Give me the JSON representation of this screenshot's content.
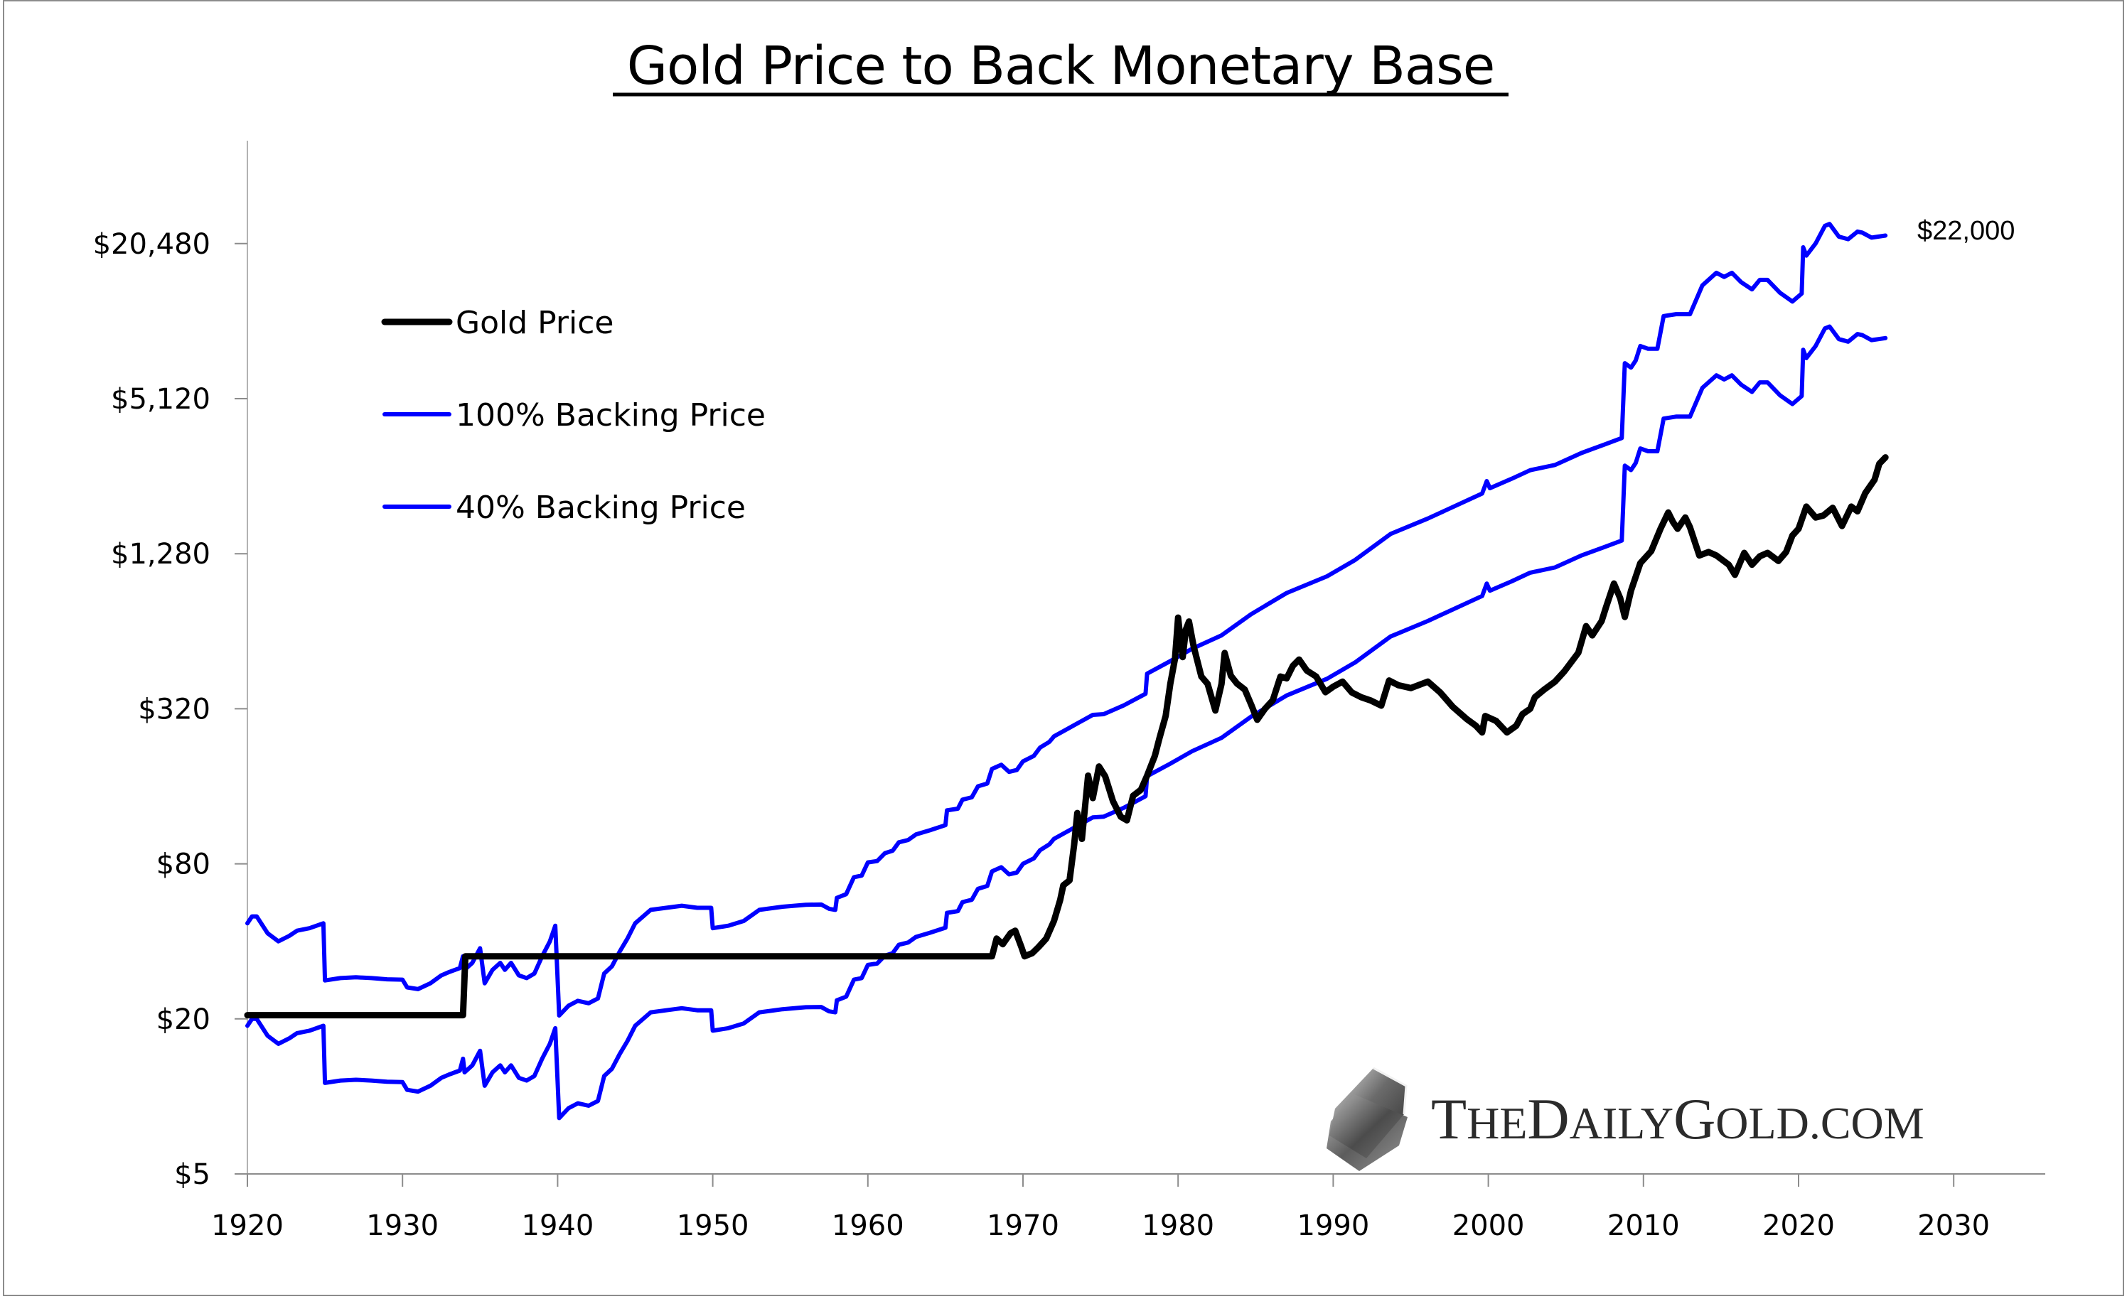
{
  "chart_data": {
    "type": "line",
    "title": "Gold Price to Back Monetary Base",
    "xlabel": "",
    "ylabel": "",
    "y_scale": "log",
    "ylim": [
      5,
      40000
    ],
    "xlim": [
      1920,
      2035
    ],
    "grid": false,
    "legend_position": "top-left",
    "y_ticks": [
      {
        "value": 5,
        "label": "$5"
      },
      {
        "value": 20,
        "label": "$20"
      },
      {
        "value": 80,
        "label": "$80"
      },
      {
        "value": 320,
        "label": "$320"
      },
      {
        "value": 1280,
        "label": "$1,280"
      },
      {
        "value": 5120,
        "label": "$5,120"
      },
      {
        "value": 20480,
        "label": "$20,480"
      }
    ],
    "x_ticks": [
      {
        "value": 1920,
        "label": "1920"
      },
      {
        "value": 1930,
        "label": "1930"
      },
      {
        "value": 1940,
        "label": "1940"
      },
      {
        "value": 1950,
        "label": "1950"
      },
      {
        "value": 1960,
        "label": "1960"
      },
      {
        "value": 1970,
        "label": "1970"
      },
      {
        "value": 1980,
        "label": "1980"
      },
      {
        "value": 1990,
        "label": "1990"
      },
      {
        "value": 2000,
        "label": "2000"
      },
      {
        "value": 2010,
        "label": "2010"
      },
      {
        "value": 2020,
        "label": "2020"
      },
      {
        "value": 2030,
        "label": "2030"
      }
    ],
    "series": [
      {
        "name": "Gold Price",
        "color": "#000000",
        "points": [
          [
            1920.0,
            20.67
          ],
          [
            1933.9,
            20.67
          ],
          [
            1934.05,
            35.0
          ],
          [
            1968.0,
            35.0
          ],
          [
            1968.3,
            41
          ],
          [
            1968.7,
            39
          ],
          [
            1969.2,
            43
          ],
          [
            1969.5,
            44
          ],
          [
            1969.9,
            38
          ],
          [
            1970.1,
            35
          ],
          [
            1970.6,
            36
          ],
          [
            1971.0,
            38
          ],
          [
            1971.5,
            41
          ],
          [
            1972.0,
            48
          ],
          [
            1972.4,
            58
          ],
          [
            1972.6,
            66
          ],
          [
            1973.0,
            69
          ],
          [
            1973.3,
            95
          ],
          [
            1973.5,
            126
          ],
          [
            1973.8,
            100
          ],
          [
            1974.2,
            176
          ],
          [
            1974.5,
            144
          ],
          [
            1974.9,
            191
          ],
          [
            1975.3,
            175
          ],
          [
            1975.8,
            140
          ],
          [
            1976.3,
            122
          ],
          [
            1976.7,
            118
          ],
          [
            1977.1,
            147
          ],
          [
            1977.6,
            155
          ],
          [
            1978.0,
            176
          ],
          [
            1978.5,
            210
          ],
          [
            1978.8,
            246
          ],
          [
            1979.2,
            300
          ],
          [
            1979.5,
            401
          ],
          [
            1979.8,
            500
          ],
          [
            1980.0,
            723
          ],
          [
            1980.2,
            560
          ],
          [
            1980.3,
            508
          ],
          [
            1980.5,
            650
          ],
          [
            1980.7,
            698
          ],
          [
            1981.0,
            560
          ],
          [
            1981.5,
            427
          ],
          [
            1981.9,
            400
          ],
          [
            1982.4,
            315
          ],
          [
            1982.8,
            400
          ],
          [
            1983.0,
            527
          ],
          [
            1983.4,
            430
          ],
          [
            1983.8,
            401
          ],
          [
            1984.3,
            380
          ],
          [
            1984.7,
            333
          ],
          [
            1985.1,
            290
          ],
          [
            1985.6,
            320
          ],
          [
            1986.1,
            345
          ],
          [
            1986.6,
            427
          ],
          [
            1987.0,
            420
          ],
          [
            1987.4,
            470
          ],
          [
            1987.8,
            497
          ],
          [
            1988.3,
            450
          ],
          [
            1988.9,
            427
          ],
          [
            1989.5,
            371
          ],
          [
            1990.0,
            390
          ],
          [
            1990.6,
            408
          ],
          [
            1991.2,
            370
          ],
          [
            1991.8,
            355
          ],
          [
            1992.4,
            345
          ],
          [
            1993.1,
            329
          ],
          [
            1993.6,
            412
          ],
          [
            1994.2,
            395
          ],
          [
            1995.0,
            385
          ],
          [
            1996.1,
            408
          ],
          [
            1996.9,
            370
          ],
          [
            1997.7,
            326
          ],
          [
            1998.6,
            292
          ],
          [
            1999.2,
            275
          ],
          [
            1999.6,
            259
          ],
          [
            1999.8,
            300
          ],
          [
            2000.5,
            287
          ],
          [
            2001.2,
            259
          ],
          [
            2001.8,
            275
          ],
          [
            2002.2,
            305
          ],
          [
            2002.7,
            320
          ],
          [
            2003.0,
            355
          ],
          [
            2003.6,
            380
          ],
          [
            2004.3,
            408
          ],
          [
            2004.9,
            447
          ],
          [
            2005.8,
            528
          ],
          [
            2006.3,
            670
          ],
          [
            2006.7,
            617
          ],
          [
            2007.3,
            700
          ],
          [
            2007.6,
            797
          ],
          [
            2008.1,
            980
          ],
          [
            2008.5,
            860
          ],
          [
            2008.8,
            727
          ],
          [
            2009.2,
            920
          ],
          [
            2009.8,
            1176
          ],
          [
            2010.5,
            1310
          ],
          [
            2011.1,
            1600
          ],
          [
            2011.6,
            1850
          ],
          [
            2011.9,
            1700
          ],
          [
            2012.2,
            1600
          ],
          [
            2012.7,
            1770
          ],
          [
            2013.0,
            1620
          ],
          [
            2013.3,
            1430
          ],
          [
            2013.6,
            1260
          ],
          [
            2014.2,
            1300
          ],
          [
            2014.7,
            1260
          ],
          [
            2015.5,
            1160
          ],
          [
            2015.9,
            1060
          ],
          [
            2016.5,
            1290
          ],
          [
            2017.0,
            1160
          ],
          [
            2017.5,
            1250
          ],
          [
            2018.0,
            1290
          ],
          [
            2018.7,
            1200
          ],
          [
            2019.2,
            1300
          ],
          [
            2019.6,
            1505
          ],
          [
            2020.0,
            1600
          ],
          [
            2020.5,
            1950
          ],
          [
            2021.1,
            1770
          ],
          [
            2021.6,
            1800
          ],
          [
            2022.2,
            1930
          ],
          [
            2022.8,
            1640
          ],
          [
            2023.4,
            1950
          ],
          [
            2023.8,
            1870
          ],
          [
            2024.3,
            2200
          ],
          [
            2024.9,
            2480
          ],
          [
            2025.2,
            2860
          ],
          [
            2025.6,
            3030
          ]
        ]
      },
      {
        "name": "100% Backing Price",
        "color": "#0000ff",
        "points": [
          [
            1920.0,
            47
          ],
          [
            1920.3,
            50
          ],
          [
            1920.6,
            50
          ],
          [
            1921.3,
            43
          ],
          [
            1922.0,
            40
          ],
          [
            1922.7,
            42
          ],
          [
            1923.2,
            44
          ],
          [
            1924.0,
            45
          ],
          [
            1924.9,
            47
          ],
          [
            1925.0,
            28.2
          ],
          [
            1926.0,
            28.8
          ],
          [
            1927.0,
            29
          ],
          [
            1928.0,
            28.8
          ],
          [
            1929.0,
            28.5
          ],
          [
            1930.0,
            28.4
          ],
          [
            1930.3,
            26.5
          ],
          [
            1931.0,
            26.1
          ],
          [
            1931.8,
            27.5
          ],
          [
            1932.5,
            29.5
          ],
          [
            1933.0,
            30.4
          ],
          [
            1933.7,
            31.5
          ],
          [
            1933.9,
            35
          ],
          [
            1934.0,
            31
          ],
          [
            1934.5,
            33
          ],
          [
            1935.0,
            37.6
          ],
          [
            1935.3,
            27.5
          ],
          [
            1935.8,
            31
          ],
          [
            1936.3,
            33
          ],
          [
            1936.6,
            31
          ],
          [
            1937.0,
            33
          ],
          [
            1937.5,
            29.5
          ],
          [
            1938.0,
            28.8
          ],
          [
            1938.5,
            30
          ],
          [
            1939.0,
            35
          ],
          [
            1939.5,
            40
          ],
          [
            1939.85,
            46
          ],
          [
            1940.1,
            20.6
          ],
          [
            1940.7,
            22.5
          ],
          [
            1941.3,
            23.5
          ],
          [
            1942.0,
            23
          ],
          [
            1942.6,
            24
          ],
          [
            1943.0,
            30
          ],
          [
            1943.5,
            32
          ],
          [
            1944.0,
            36.5
          ],
          [
            1944.5,
            41
          ],
          [
            1945.0,
            47
          ],
          [
            1946.0,
            53
          ],
          [
            1947.0,
            54
          ],
          [
            1948.0,
            55
          ],
          [
            1949.0,
            54
          ],
          [
            1949.9,
            54
          ],
          [
            1950.0,
            45
          ],
          [
            1951.0,
            46
          ],
          [
            1952.0,
            48
          ],
          [
            1953.0,
            53
          ],
          [
            1954.5,
            54.5
          ],
          [
            1956.0,
            55.5
          ],
          [
            1957.0,
            55.6
          ],
          [
            1957.5,
            53.5
          ],
          [
            1957.9,
            53
          ],
          [
            1958.0,
            59
          ],
          [
            1958.6,
            61
          ],
          [
            1959.1,
            71
          ],
          [
            1959.6,
            72
          ],
          [
            1960.0,
            81
          ],
          [
            1960.6,
            82
          ],
          [
            1961.1,
            88
          ],
          [
            1961.6,
            90
          ],
          [
            1962.0,
            97
          ],
          [
            1962.6,
            99
          ],
          [
            1963.1,
            104
          ],
          [
            1964.0,
            108
          ],
          [
            1965.0,
            113
          ],
          [
            1965.1,
            129
          ],
          [
            1965.8,
            131
          ],
          [
            1966.1,
            142
          ],
          [
            1966.7,
            145
          ],
          [
            1967.1,
            160
          ],
          [
            1967.7,
            164
          ],
          [
            1968.0,
            187
          ],
          [
            1968.6,
            194
          ],
          [
            1969.1,
            182
          ],
          [
            1969.6,
            185
          ],
          [
            1970.0,
            200
          ],
          [
            1970.7,
            210
          ],
          [
            1971.1,
            226
          ],
          [
            1971.7,
            238
          ],
          [
            1972.0,
            250
          ],
          [
            1973.0,
            270
          ],
          [
            1974.5,
            303
          ],
          [
            1975.2,
            305
          ],
          [
            1976.5,
            330
          ],
          [
            1977.9,
            366
          ],
          [
            1978.0,
            438
          ],
          [
            1979.5,
            490
          ],
          [
            1980.9,
            547
          ],
          [
            1982.8,
            617
          ],
          [
            1984.7,
            745
          ],
          [
            1987.0,
            901
          ],
          [
            1989.6,
            1046
          ],
          [
            1991.4,
            1209
          ],
          [
            1993.7,
            1527
          ],
          [
            1996.1,
            1753
          ],
          [
            1999.6,
            2193
          ],
          [
            1999.9,
            2450
          ],
          [
            2000.1,
            2300
          ],
          [
            2001.5,
            2500
          ],
          [
            2002.7,
            2700
          ],
          [
            2004.3,
            2830
          ],
          [
            2006.0,
            3150
          ],
          [
            2007.5,
            3400
          ],
          [
            2008.6,
            3600
          ],
          [
            2008.8,
            7030
          ],
          [
            2009.2,
            6760
          ],
          [
            2009.5,
            7200
          ],
          [
            2009.8,
            8200
          ],
          [
            2010.3,
            8000
          ],
          [
            2010.9,
            8000
          ],
          [
            2011.3,
            10710
          ],
          [
            2012.1,
            10900
          ],
          [
            2013.0,
            10900
          ],
          [
            2013.8,
            14100
          ],
          [
            2014.7,
            15770
          ],
          [
            2015.2,
            15200
          ],
          [
            2015.7,
            15770
          ],
          [
            2016.3,
            14500
          ],
          [
            2017.0,
            13600
          ],
          [
            2017.5,
            14800
          ],
          [
            2018.0,
            14800
          ],
          [
            2018.8,
            13200
          ],
          [
            2019.6,
            12200
          ],
          [
            2020.2,
            13100
          ],
          [
            2020.3,
            19820
          ],
          [
            2020.5,
            18400
          ],
          [
            2021.1,
            20500
          ],
          [
            2021.7,
            24000
          ],
          [
            2022.0,
            24400
          ],
          [
            2022.6,
            21800
          ],
          [
            2023.2,
            21300
          ],
          [
            2023.8,
            22800
          ],
          [
            2024.1,
            22600
          ],
          [
            2024.7,
            21600
          ],
          [
            2025.6,
            22000
          ]
        ]
      },
      {
        "name": "40% Backing Price",
        "color": "#0000ff",
        "derived_from": "100% Backing Price",
        "multiplier": 0.4
      }
    ],
    "annotations": [
      {
        "text": "$22,000",
        "x": 2030,
        "y": 22000
      }
    ]
  },
  "legend": [
    {
      "label": "Gold Price",
      "color": "#000000"
    },
    {
      "label": "100% Backing Price",
      "color": "#0000ff"
    },
    {
      "label": "40% Backing Price",
      "color": "#0000ff"
    }
  ],
  "watermark": {
    "text": "THEDAILYGOLD.COM",
    "icon": "gold-bar-icon"
  },
  "colors": {
    "gold": "#000000",
    "backing": "#0000ff",
    "axis": "#8c8c8c"
  }
}
